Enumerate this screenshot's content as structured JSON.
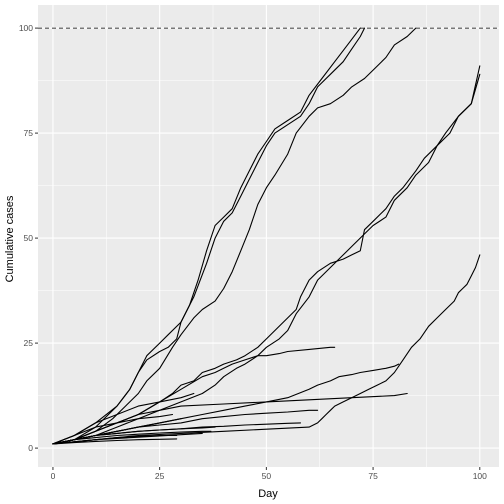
{
  "chart_data": {
    "type": "line",
    "title": "",
    "xlabel": "Day",
    "ylabel": "Cumulative cases",
    "xlim": [
      -3.5,
      104.5
    ],
    "ylim": [
      -4.5,
      105.5
    ],
    "x_ticks": [
      0,
      25,
      50,
      75,
      100
    ],
    "y_ticks": [
      0,
      25,
      50,
      75,
      100
    ],
    "grid": true,
    "legend": "none",
    "reference_line": {
      "y": 100,
      "style": "dashed"
    },
    "colors": {
      "panel": "#ebebeb",
      "grid": "#ffffff",
      "line": "#000000"
    },
    "series": [
      {
        "x": [
          0,
          5,
          10,
          15,
          18,
          20,
          22,
          25,
          27,
          30,
          33,
          36,
          38,
          40,
          42,
          44,
          46,
          48,
          50,
          52,
          55,
          58,
          60,
          62,
          65,
          68,
          70,
          72,
          73
        ],
        "y": [
          1,
          3,
          6,
          10,
          14,
          18,
          22,
          25,
          27,
          30,
          36,
          44,
          50,
          54,
          56,
          60,
          64,
          68,
          72,
          75,
          77,
          79,
          82,
          86,
          89,
          92,
          95,
          98,
          100
        ]
      },
      {
        "x": [
          0,
          5,
          10,
          15,
          18,
          20,
          22,
          25,
          27,
          29,
          30,
          32,
          34,
          36,
          38,
          40,
          42,
          44,
          46,
          48,
          50,
          52,
          55,
          58,
          60,
          63,
          66,
          69,
          72
        ],
        "y": [
          1,
          2,
          5,
          10,
          14,
          18,
          21,
          23,
          24,
          26,
          30,
          34,
          40,
          47,
          53,
          55,
          57,
          62,
          66,
          70,
          73,
          76,
          78,
          80,
          84,
          88,
          92,
          96,
          100
        ]
      },
      {
        "x": [
          0,
          5,
          10,
          14,
          17,
          20,
          22,
          25,
          28,
          30,
          33,
          35,
          38,
          40,
          42,
          44,
          46,
          48,
          50,
          52,
          55,
          57,
          60,
          62,
          65,
          68,
          70,
          73,
          75,
          78,
          80,
          83,
          85
        ],
        "y": [
          1,
          2,
          4,
          7,
          10,
          13,
          16,
          19,
          24,
          27,
          31,
          33,
          35,
          38,
          42,
          47,
          52,
          58,
          62,
          65,
          70,
          75,
          79,
          81,
          82,
          84,
          86,
          88,
          90,
          93,
          96,
          98,
          100
        ]
      },
      {
        "x": [
          0,
          5,
          10,
          15,
          20,
          25,
          28,
          30,
          33,
          35,
          38,
          40,
          43,
          45,
          48,
          50,
          52,
          55,
          57,
          58,
          60,
          62,
          65,
          68,
          70,
          72,
          73,
          75,
          78,
          80,
          82,
          85,
          87,
          90,
          92,
          95,
          98,
          100
        ],
        "y": [
          1,
          2,
          4,
          6,
          8,
          11,
          13,
          15,
          16,
          18,
          19,
          20,
          21,
          22,
          24,
          26,
          28,
          31,
          33,
          36,
          40,
          42,
          44,
          45,
          46,
          47,
          52,
          54,
          57,
          60,
          62,
          66,
          69,
          72,
          75,
          79,
          82,
          89
        ]
      },
      {
        "x": [
          0,
          5,
          10,
          15,
          20,
          25,
          30,
          35,
          38,
          40,
          43,
          45,
          48,
          50,
          53,
          55,
          57,
          60,
          62,
          65,
          68,
          70,
          73,
          75,
          78,
          80,
          83,
          85,
          88,
          90,
          93,
          95,
          98,
          100
        ],
        "y": [
          1,
          2,
          3,
          5,
          7,
          9,
          11,
          13,
          15,
          17,
          19,
          20,
          22,
          24,
          26,
          28,
          32,
          36,
          40,
          43,
          46,
          48,
          51,
          53,
          55,
          59,
          62,
          65,
          68,
          72,
          75,
          79,
          82,
          91
        ]
      },
      {
        "x": [
          0,
          5,
          10,
          15,
          20,
          25,
          30,
          35,
          38,
          40,
          42,
          45,
          48,
          50,
          53,
          55,
          60,
          65,
          66
        ],
        "y": [
          1,
          2,
          4,
          6,
          8,
          11,
          14,
          17,
          18,
          19,
          20,
          21,
          22,
          22,
          22.5,
          23,
          23.5,
          24,
          24
        ]
      },
      {
        "x": [
          0,
          5,
          10,
          15,
          20,
          25,
          30,
          35,
          40,
          45,
          50,
          55,
          60,
          62,
          65,
          67,
          70,
          72,
          75,
          78,
          80,
          81
        ],
        "y": [
          1,
          2,
          3,
          4,
          5,
          6,
          7,
          8,
          9,
          10,
          11,
          12,
          14,
          15,
          16,
          17,
          17.5,
          18,
          18.5,
          19,
          19.5,
          20
        ]
      },
      {
        "x": [
          0,
          10,
          20,
          30,
          40,
          50,
          60,
          62,
          63,
          64,
          65,
          66,
          68,
          70,
          72,
          74,
          76,
          78,
          80,
          82,
          84,
          86,
          88,
          90,
          92,
          94,
          95,
          96,
          97,
          98,
          99,
          100
        ],
        "y": [
          1,
          2,
          3,
          3.5,
          4,
          4.5,
          5,
          6,
          7,
          8,
          9,
          10,
          11,
          12,
          13,
          14,
          15,
          16,
          18,
          21,
          24,
          26,
          29,
          31,
          33,
          35,
          37,
          38,
          39,
          41,
          43,
          46
        ]
      },
      {
        "x": [
          0,
          5,
          10,
          15,
          20,
          25,
          30,
          40,
          50,
          60,
          70,
          80,
          83
        ],
        "y": [
          1,
          2,
          4,
          6,
          8,
          9,
          10,
          10.5,
          11,
          11.5,
          12,
          12.5,
          13
        ]
      },
      {
        "x": [
          0,
          5,
          10,
          15,
          20,
          25,
          30,
          35,
          40,
          45,
          50,
          55,
          60,
          62
        ],
        "y": [
          1,
          2,
          3,
          4,
          5,
          5.5,
          6,
          7,
          7.5,
          8,
          8.3,
          8.6,
          9,
          9
        ]
      },
      {
        "x": [
          0,
          5,
          10,
          15,
          20,
          25,
          30,
          35,
          40,
          45,
          50,
          55,
          58
        ],
        "y": [
          1,
          2,
          3,
          3.5,
          4,
          4.3,
          4.6,
          5,
          5.2,
          5.5,
          5.7,
          5.9,
          6
        ]
      },
      {
        "x": [
          0,
          5,
          10,
          15,
          20,
          25,
          30,
          33
        ],
        "y": [
          1,
          3,
          6,
          8,
          10,
          11,
          12,
          13
        ]
      },
      {
        "x": [
          0,
          5,
          10,
          15,
          20,
          25,
          28
        ],
        "y": [
          1,
          3,
          5,
          6,
          7,
          7.5,
          8
        ]
      },
      {
        "x": [
          0,
          5,
          10,
          15,
          20,
          25,
          30,
          35,
          38
        ],
        "y": [
          1,
          2,
          3,
          3.5,
          4,
          4.3,
          4.6,
          4.8,
          5
        ]
      },
      {
        "x": [
          0,
          5,
          10,
          15,
          20,
          25,
          30,
          35,
          37
        ],
        "y": [
          1,
          2,
          2.5,
          3,
          3.3,
          3.6,
          3.8,
          4,
          4
        ]
      },
      {
        "x": [
          0,
          5,
          10,
          15,
          20,
          25,
          29
        ],
        "y": [
          1,
          1.5,
          2,
          2.5,
          2.8,
          3,
          3
        ]
      },
      {
        "x": [
          0,
          5,
          10,
          15,
          20,
          25,
          29
        ],
        "y": [
          1,
          1.3,
          1.6,
          1.8,
          2,
          2.1,
          2.2
        ]
      },
      {
        "x": [
          0,
          5,
          10,
          15,
          20,
          25,
          30
        ],
        "y": [
          1,
          2,
          3,
          4,
          5,
          6,
          7
        ]
      },
      {
        "x": [
          0,
          5,
          10,
          15,
          20,
          25,
          30,
          35
        ],
        "y": [
          1,
          1.5,
          2,
          2.3,
          2.6,
          2.9,
          3.2,
          3.5
        ]
      }
    ]
  }
}
